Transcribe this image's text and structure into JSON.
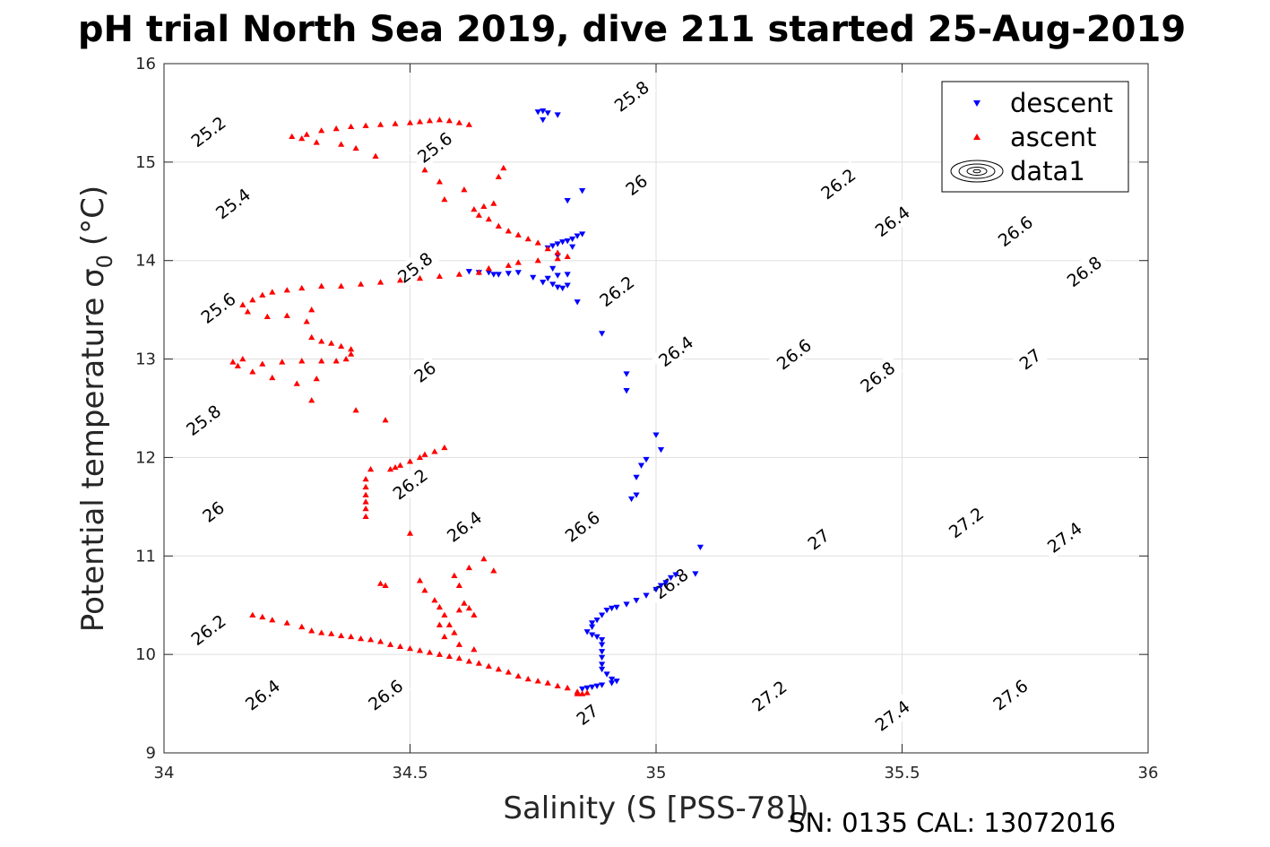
{
  "chart_data": {
    "type": "scatter",
    "title": "pH trial North Sea 2019, dive 211 started 25-Aug-2019",
    "xlabel": "Salinity (S [PSS-78])",
    "ylabel": "Potential temperature",
    "ylabel_symbol": "σ",
    "ylabel_subscript": "0",
    "ylabel_unit": "(°C)",
    "xlim": [
      34,
      36
    ],
    "ylim": [
      9,
      16
    ],
    "xticks": [
      34,
      34.5,
      35,
      35.5,
      36
    ],
    "yticks": [
      9,
      10,
      11,
      12,
      13,
      14,
      15,
      16
    ],
    "xtick_labels": [
      "34",
      "34.5",
      "35",
      "35.5",
      "36"
    ],
    "ytick_labels": [
      "9",
      "10",
      "11",
      "12",
      "13",
      "14",
      "15",
      "16"
    ],
    "grid": true,
    "legend_position": "top-right",
    "footer": "SN: 0135  CAL: 13072016",
    "colors": {
      "descent": "#0000ff",
      "ascent": "#ff0000",
      "contour": "#000000"
    },
    "contours": {
      "levels": [
        25.2,
        25.4,
        25.6,
        25.8,
        26.0,
        26.2,
        26.4,
        26.6,
        26.8,
        27.0,
        27.2,
        27.4,
        27.6
      ],
      "labels": [
        {
          "text": "25.2",
          "s": 34.09,
          "t": 15.31
        },
        {
          "text": "25.4",
          "s": 34.14,
          "t": 14.58
        },
        {
          "text": "25.6",
          "s": 34.11,
          "t": 13.52
        },
        {
          "text": "25.8",
          "s": 34.08,
          "t": 12.38
        },
        {
          "text": "26",
          "s": 34.1,
          "t": 11.45
        },
        {
          "text": "26.2",
          "s": 34.09,
          "t": 10.25
        },
        {
          "text": "26.4",
          "s": 34.2,
          "t": 9.59
        },
        {
          "text": "26.6",
          "s": 34.45,
          "t": 9.59
        },
        {
          "text": "25.6",
          "s": 34.55,
          "t": 15.15
        },
        {
          "text": "25.8",
          "s": 34.51,
          "t": 13.93
        },
        {
          "text": "26",
          "s": 34.53,
          "t": 12.87
        },
        {
          "text": "26.2",
          "s": 34.5,
          "t": 11.73
        },
        {
          "text": "26.4",
          "s": 34.61,
          "t": 11.3
        },
        {
          "text": "26.6",
          "s": 34.85,
          "t": 11.3
        },
        {
          "text": "26.8",
          "s": 35.03,
          "t": 10.72
        },
        {
          "text": "27",
          "s": 34.86,
          "t": 9.39
        },
        {
          "text": "25.8",
          "s": 34.95,
          "t": 15.67
        },
        {
          "text": "26",
          "s": 34.96,
          "t": 14.77
        },
        {
          "text": "26.2",
          "s": 34.92,
          "t": 13.69
        },
        {
          "text": "26.4",
          "s": 35.04,
          "t": 13.08
        },
        {
          "text": "26.6",
          "s": 35.28,
          "t": 13.05
        },
        {
          "text": "26.8",
          "s": 35.45,
          "t": 12.82
        },
        {
          "text": "27",
          "s": 35.76,
          "t": 13.0
        },
        {
          "text": "27",
          "s": 35.33,
          "t": 11.17
        },
        {
          "text": "27.2",
          "s": 35.63,
          "t": 11.34
        },
        {
          "text": "27.4",
          "s": 35.83,
          "t": 11.19
        },
        {
          "text": "27.2",
          "s": 35.23,
          "t": 9.58
        },
        {
          "text": "27.4",
          "s": 35.48,
          "t": 9.38
        },
        {
          "text": "27.6",
          "s": 35.72,
          "t": 9.59
        },
        {
          "text": "26.2",
          "s": 35.37,
          "t": 14.78
        },
        {
          "text": "26.4",
          "s": 35.48,
          "t": 14.4
        },
        {
          "text": "26.6",
          "s": 35.73,
          "t": 14.3
        },
        {
          "text": "26.8",
          "s": 35.87,
          "t": 13.89
        }
      ]
    },
    "series": [
      {
        "name": "descent",
        "marker": "triangle-down",
        "color": "#0000ff",
        "points": [
          [
            34.76,
            15.51
          ],
          [
            34.77,
            15.52
          ],
          [
            34.78,
            15.5
          ],
          [
            34.8,
            15.48
          ],
          [
            34.77,
            15.43
          ],
          [
            34.82,
            14.61
          ],
          [
            34.85,
            14.71
          ],
          [
            34.78,
            14.13
          ],
          [
            34.79,
            14.15
          ],
          [
            34.8,
            14.17
          ],
          [
            34.81,
            14.19
          ],
          [
            34.82,
            14.2
          ],
          [
            34.83,
            14.22
          ],
          [
            34.84,
            14.25
          ],
          [
            34.85,
            14.27
          ],
          [
            34.83,
            14.14
          ],
          [
            34.8,
            14.05
          ],
          [
            34.79,
            13.92
          ],
          [
            34.78,
            13.82
          ],
          [
            34.79,
            13.76
          ],
          [
            34.8,
            13.73
          ],
          [
            34.81,
            13.72
          ],
          [
            34.82,
            13.75
          ],
          [
            34.8,
            13.85
          ],
          [
            34.82,
            13.86
          ],
          [
            34.84,
            13.58
          ],
          [
            34.75,
            13.83
          ],
          [
            34.77,
            13.78
          ],
          [
            34.72,
            13.88
          ],
          [
            34.7,
            13.87
          ],
          [
            34.68,
            13.86
          ],
          [
            34.67,
            13.86
          ],
          [
            34.66,
            13.88
          ],
          [
            34.64,
            13.88
          ],
          [
            34.62,
            13.89
          ],
          [
            34.89,
            13.26
          ],
          [
            34.94,
            12.85
          ],
          [
            34.94,
            12.68
          ],
          [
            35.0,
            12.23
          ],
          [
            35.01,
            12.08
          ],
          [
            34.98,
            11.98
          ],
          [
            34.97,
            11.92
          ],
          [
            34.96,
            11.8
          ],
          [
            34.96,
            11.62
          ],
          [
            34.95,
            11.58
          ],
          [
            35.09,
            11.09
          ],
          [
            35.08,
            10.82
          ],
          [
            35.04,
            10.81
          ],
          [
            35.03,
            10.78
          ],
          [
            35.02,
            10.73
          ],
          [
            35.01,
            10.7
          ],
          [
            35.0,
            10.66
          ],
          [
            34.98,
            10.6
          ],
          [
            34.96,
            10.55
          ],
          [
            34.94,
            10.51
          ],
          [
            34.92,
            10.48
          ],
          [
            34.91,
            10.47
          ],
          [
            34.9,
            10.45
          ],
          [
            34.89,
            10.4
          ],
          [
            34.88,
            10.35
          ],
          [
            34.87,
            10.32
          ],
          [
            34.87,
            10.28
          ],
          [
            34.86,
            10.23
          ],
          [
            34.87,
            10.2
          ],
          [
            34.88,
            10.18
          ],
          [
            34.89,
            10.15
          ],
          [
            34.89,
            10.1
          ],
          [
            34.89,
            10.03
          ],
          [
            34.89,
            9.97
          ],
          [
            34.89,
            9.9
          ],
          [
            34.89,
            9.85
          ],
          [
            34.9,
            9.8
          ],
          [
            34.91,
            9.75
          ],
          [
            34.92,
            9.73
          ],
          [
            34.91,
            9.71
          ],
          [
            34.89,
            9.69
          ],
          [
            34.88,
            9.68
          ],
          [
            34.87,
            9.67
          ],
          [
            34.86,
            9.66
          ],
          [
            34.85,
            9.65
          ]
        ]
      },
      {
        "name": "ascent",
        "marker": "triangle-up",
        "color": "#ff0000",
        "points": [
          [
            34.84,
            9.6
          ],
          [
            34.85,
            9.6
          ],
          [
            34.86,
            9.61
          ],
          [
            34.84,
            9.62
          ],
          [
            34.82,
            9.66
          ],
          [
            34.8,
            9.68
          ],
          [
            34.78,
            9.71
          ],
          [
            34.76,
            9.73
          ],
          [
            34.74,
            9.75
          ],
          [
            34.72,
            9.78
          ],
          [
            34.7,
            9.82
          ],
          [
            34.68,
            9.85
          ],
          [
            34.66,
            9.88
          ],
          [
            34.64,
            9.91
          ],
          [
            34.62,
            9.93
          ],
          [
            34.6,
            9.96
          ],
          [
            34.58,
            9.98
          ],
          [
            34.56,
            10.0
          ],
          [
            34.54,
            10.02
          ],
          [
            34.52,
            10.04
          ],
          [
            34.5,
            10.06
          ],
          [
            34.48,
            10.08
          ],
          [
            34.46,
            10.1
          ],
          [
            34.44,
            10.13
          ],
          [
            34.42,
            10.15
          ],
          [
            34.4,
            10.16
          ],
          [
            34.38,
            10.18
          ],
          [
            34.36,
            10.19
          ],
          [
            34.34,
            10.21
          ],
          [
            34.32,
            10.22
          ],
          [
            34.3,
            10.24
          ],
          [
            34.28,
            10.28
          ],
          [
            34.25,
            10.32
          ],
          [
            34.22,
            10.35
          ],
          [
            34.2,
            10.38
          ],
          [
            34.18,
            10.4
          ],
          [
            34.52,
            10.75
          ],
          [
            34.53,
            10.65
          ],
          [
            34.55,
            10.55
          ],
          [
            34.56,
            10.48
          ],
          [
            34.57,
            10.4
          ],
          [
            34.58,
            10.3
          ],
          [
            34.59,
            10.22
          ],
          [
            34.6,
            10.45
          ],
          [
            34.61,
            10.52
          ],
          [
            34.62,
            10.47
          ],
          [
            34.63,
            10.4
          ],
          [
            34.6,
            10.7
          ],
          [
            34.59,
            10.8
          ],
          [
            34.62,
            10.88
          ],
          [
            34.65,
            10.97
          ],
          [
            34.67,
            10.85
          ],
          [
            34.56,
            10.3
          ],
          [
            34.57,
            10.18
          ],
          [
            34.6,
            10.1
          ],
          [
            34.63,
            10.05
          ],
          [
            34.44,
            10.72
          ],
          [
            34.45,
            10.7
          ],
          [
            34.5,
            11.23
          ],
          [
            34.41,
            11.4
          ],
          [
            34.41,
            11.48
          ],
          [
            34.41,
            11.55
          ],
          [
            34.41,
            11.62
          ],
          [
            34.41,
            11.7
          ],
          [
            34.41,
            11.78
          ],
          [
            34.42,
            11.88
          ],
          [
            34.45,
            12.38
          ],
          [
            34.46,
            11.88
          ],
          [
            34.47,
            11.9
          ],
          [
            34.48,
            11.92
          ],
          [
            34.5,
            11.96
          ],
          [
            34.52,
            12.0
          ],
          [
            34.53,
            12.03
          ],
          [
            34.55,
            12.06
          ],
          [
            34.57,
            12.1
          ],
          [
            34.39,
            12.48
          ],
          [
            34.3,
            12.58
          ],
          [
            34.27,
            12.75
          ],
          [
            34.31,
            12.8
          ],
          [
            34.22,
            12.81
          ],
          [
            34.18,
            12.87
          ],
          [
            34.15,
            12.93
          ],
          [
            34.14,
            12.97
          ],
          [
            34.16,
            13.0
          ],
          [
            34.2,
            12.95
          ],
          [
            34.24,
            12.97
          ],
          [
            34.28,
            12.98
          ],
          [
            34.32,
            12.98
          ],
          [
            34.35,
            12.98
          ],
          [
            34.37,
            13.0
          ],
          [
            34.38,
            13.05
          ],
          [
            34.38,
            13.1
          ],
          [
            34.36,
            13.13
          ],
          [
            34.34,
            13.16
          ],
          [
            34.32,
            13.18
          ],
          [
            34.3,
            13.22
          ],
          [
            34.29,
            13.38
          ],
          [
            34.3,
            13.5
          ],
          [
            34.25,
            13.44
          ],
          [
            34.21,
            13.43
          ],
          [
            34.17,
            13.48
          ],
          [
            34.16,
            13.55
          ],
          [
            34.18,
            13.6
          ],
          [
            34.2,
            13.65
          ],
          [
            34.22,
            13.68
          ],
          [
            34.25,
            13.7
          ],
          [
            34.28,
            13.72
          ],
          [
            34.32,
            13.74
          ],
          [
            34.36,
            13.74
          ],
          [
            34.4,
            13.76
          ],
          [
            34.44,
            13.78
          ],
          [
            34.48,
            13.8
          ],
          [
            34.52,
            13.82
          ],
          [
            34.56,
            13.84
          ],
          [
            34.6,
            13.86
          ],
          [
            34.64,
            13.88
          ],
          [
            34.66,
            13.92
          ],
          [
            34.7,
            13.95
          ],
          [
            34.72,
            13.98
          ],
          [
            34.76,
            14.0
          ],
          [
            34.8,
            14.02
          ],
          [
            34.82,
            14.04
          ],
          [
            34.8,
            14.08
          ],
          [
            34.78,
            14.12
          ],
          [
            34.76,
            14.18
          ],
          [
            34.74,
            14.22
          ],
          [
            34.72,
            14.26
          ],
          [
            34.7,
            14.3
          ],
          [
            34.68,
            14.35
          ],
          [
            34.66,
            14.42
          ],
          [
            34.64,
            14.46
          ],
          [
            34.63,
            14.52
          ],
          [
            34.65,
            14.55
          ],
          [
            34.67,
            14.58
          ],
          [
            34.69,
            14.94
          ],
          [
            34.68,
            14.85
          ],
          [
            34.61,
            14.72
          ],
          [
            34.57,
            14.62
          ],
          [
            34.56,
            14.8
          ],
          [
            34.53,
            14.92
          ],
          [
            34.62,
            15.38
          ],
          [
            34.6,
            15.4
          ],
          [
            34.58,
            15.42
          ],
          [
            34.56,
            15.43
          ],
          [
            34.54,
            15.42
          ],
          [
            34.52,
            15.41
          ],
          [
            34.5,
            15.4
          ],
          [
            34.47,
            15.39
          ],
          [
            34.44,
            15.38
          ],
          [
            34.41,
            15.37
          ],
          [
            34.38,
            15.36
          ],
          [
            34.35,
            15.34
          ],
          [
            34.32,
            15.32
          ],
          [
            34.29,
            15.28
          ],
          [
            34.26,
            15.26
          ],
          [
            34.28,
            15.24
          ],
          [
            34.31,
            15.2
          ],
          [
            34.36,
            15.18
          ],
          [
            34.39,
            15.14
          ],
          [
            34.43,
            15.06
          ]
        ]
      },
      {
        "name": "data1",
        "marker": "contour",
        "color": "#000000",
        "points": []
      }
    ]
  }
}
